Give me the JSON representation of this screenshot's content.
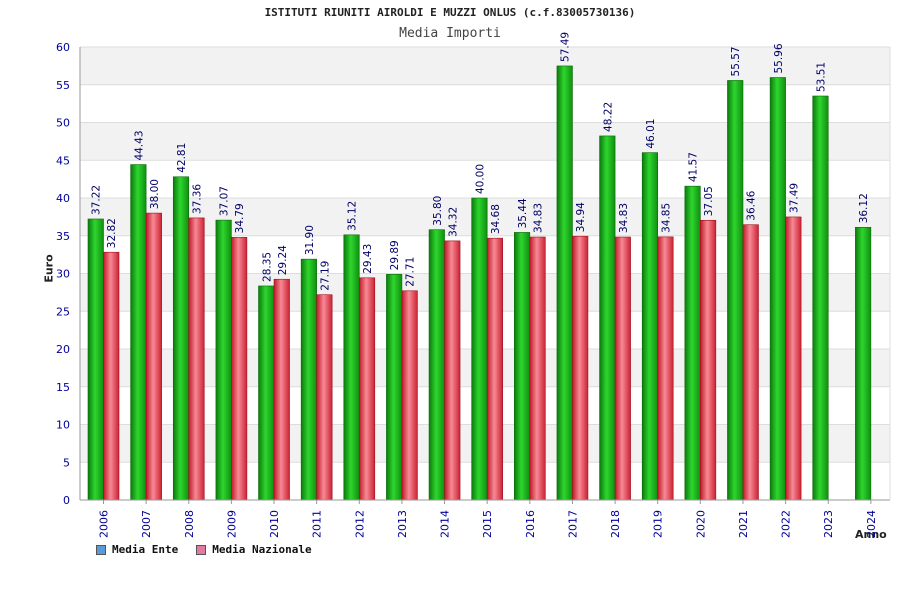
{
  "chart_data": {
    "type": "bar",
    "title": "ISTITUTI RIUNITI AIROLDI E MUZZI ONLUS (c.f.83005730136)",
    "subtitle": "Media Importi",
    "xlabel": "Anno",
    "ylabel": "Euro",
    "ylim": [
      0,
      60
    ],
    "yticks": [
      "0",
      "5",
      "10",
      "15",
      "20",
      "25",
      "30",
      "35",
      "40",
      "45",
      "50",
      "55",
      "60"
    ],
    "grid": true,
    "legend_position": "bottom-left",
    "categories": [
      "2006",
      "2007",
      "2008",
      "2009",
      "2010",
      "2011",
      "2012",
      "2013",
      "2014",
      "2015",
      "2016",
      "2017",
      "2018",
      "2019",
      "2020",
      "2021",
      "2022",
      "2023",
      "2024"
    ],
    "series": [
      {
        "name": "Media Ente",
        "color": "#22aa22",
        "legend_color": "#5b9bd5",
        "values": [
          37.22,
          44.43,
          42.81,
          37.07,
          28.35,
          31.9,
          35.12,
          29.89,
          35.8,
          40.0,
          35.44,
          57.49,
          48.22,
          46.01,
          41.57,
          55.57,
          55.96,
          53.51,
          36.12
        ],
        "labels": [
          "37.22",
          "44.43",
          "42.81",
          "37.07",
          "28.35",
          "31.90",
          "35.12",
          "29.89",
          "35.80",
          "40.00",
          "35.44",
          "57.49",
          "48.22",
          "46.01",
          "41.57",
          "55.57",
          "55.96",
          "53.51",
          "36.12"
        ]
      },
      {
        "name": "Media Nazionale",
        "color": "#dd3344",
        "legend_color": "#e07aa0",
        "values": [
          32.82,
          38.0,
          37.36,
          34.79,
          29.24,
          27.19,
          29.43,
          27.71,
          34.32,
          34.68,
          34.83,
          34.94,
          34.83,
          34.85,
          37.05,
          36.46,
          37.49,
          null,
          null
        ],
        "labels": [
          "32.82",
          "38.00",
          "37.36",
          "34.79",
          "29.24",
          "27.19",
          "29.43",
          "27.71",
          "34.32",
          "34.68",
          "34.83",
          "34.94",
          "34.83",
          "34.85",
          "37.05",
          "36.46",
          "37.49",
          "",
          ""
        ]
      }
    ]
  },
  "colors": {
    "axis_text": "#000099",
    "value_label": "#000066",
    "band": "#f2f2f2",
    "grid": "#dddddd"
  }
}
